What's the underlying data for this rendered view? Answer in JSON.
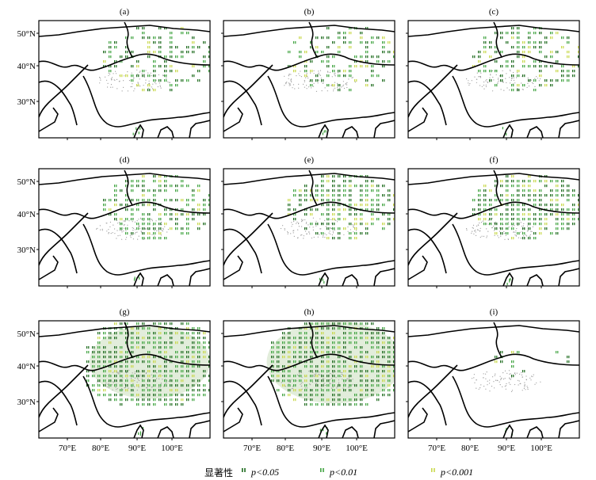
{
  "figure": {
    "panels": [
      {
        "label": "(a)",
        "stipple": 0.1,
        "green_density": 0.45,
        "sig_extent": "north-east"
      },
      {
        "label": "(b)",
        "stipple": 0.1,
        "green_density": 0.45,
        "sig_extent": "north-east"
      },
      {
        "label": "(c)",
        "stipple": 0.12,
        "green_density": 0.55,
        "sig_extent": "north-east"
      },
      {
        "label": "(d)",
        "stipple": 0.15,
        "green_density": 0.65,
        "sig_extent": "north-east"
      },
      {
        "label": "(e)",
        "stipple": 0.35,
        "green_density": 0.75,
        "sig_extent": "north-east"
      },
      {
        "label": "(f)",
        "stipple": 0.45,
        "green_density": 0.8,
        "sig_extent": "north-east"
      },
      {
        "label": "(g)",
        "stipple": 0.8,
        "green_density": 0.85,
        "sig_extent": "wide"
      },
      {
        "label": "(h)",
        "stipple": 0.9,
        "green_density": 0.9,
        "sig_extent": "wide"
      },
      {
        "label": "(i)",
        "stipple": 0.05,
        "green_density": 0.1,
        "sig_extent": "sparse"
      }
    ],
    "lat_ticks": [
      "50°N",
      "40°N",
      "30°N"
    ],
    "lon_ticks": [
      "70°E",
      "80°E",
      "90°E",
      "100°E"
    ],
    "legend": {
      "title": "显著性",
      "items": [
        {
          "label": "p<0.05",
          "color": "#1e6b1e"
        },
        {
          "label": "p<0.01",
          "color": "#3fa33f"
        },
        {
          "label": "p<0.001",
          "color": "#c8d84a"
        }
      ]
    },
    "colors": {
      "border": "#000000",
      "frame": "#000000",
      "stipple": "#9a9a9a",
      "green_dark": "#1e6b1e",
      "green_mid": "#3fa33f",
      "green_light": "#c8d84a",
      "shade": "#d6e5cc"
    }
  }
}
